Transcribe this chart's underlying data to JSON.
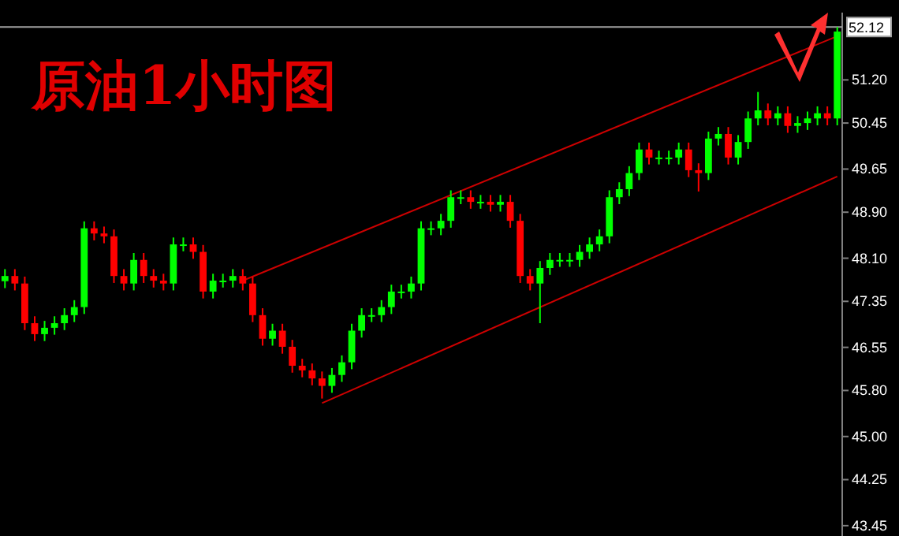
{
  "chart_data": {
    "type": "candlestick",
    "title": "原油1小时图",
    "categories": [
      null,
      null,
      null,
      null,
      null,
      null,
      null,
      null,
      null,
      null,
      null,
      null,
      null,
      null,
      null,
      null,
      null,
      null,
      null,
      null,
      null,
      null,
      null,
      null,
      null,
      null,
      null,
      null,
      null,
      null,
      null,
      null,
      null,
      null,
      null,
      null,
      null,
      null,
      null,
      null,
      null,
      null,
      null,
      null,
      null,
      null,
      null,
      null,
      null,
      null,
      null,
      null,
      null,
      null,
      null,
      null,
      null,
      null,
      null,
      null,
      null,
      null,
      null,
      null,
      null,
      null,
      null,
      null,
      null,
      null,
      null,
      null,
      null,
      null,
      null,
      null,
      null,
      null,
      null,
      null,
      null,
      null,
      null,
      null,
      null
    ],
    "ohlc": [
      [
        47.7,
        47.91,
        47.58,
        47.79
      ],
      [
        47.79,
        47.91,
        47.54,
        47.66
      ],
      [
        47.66,
        47.78,
        46.85,
        46.97
      ],
      [
        46.97,
        47.09,
        46.66,
        46.78
      ],
      [
        46.78,
        47.01,
        46.66,
        46.89
      ],
      [
        46.89,
        47.09,
        46.77,
        46.97
      ],
      [
        46.97,
        47.23,
        46.85,
        47.11
      ],
      [
        47.11,
        47.37,
        46.99,
        47.25
      ],
      [
        47.25,
        48.74,
        47.13,
        48.62
      ],
      [
        48.62,
        48.74,
        48.41,
        48.53
      ],
      [
        48.53,
        48.65,
        48.36,
        48.48
      ],
      [
        48.48,
        48.6,
        47.67,
        47.79
      ],
      [
        47.79,
        47.91,
        47.54,
        47.66
      ],
      [
        47.66,
        48.19,
        47.54,
        48.07
      ],
      [
        48.07,
        48.19,
        47.67,
        47.79
      ],
      [
        47.79,
        47.91,
        47.59,
        47.71
      ],
      [
        47.71,
        47.83,
        47.54,
        47.66
      ],
      [
        47.66,
        48.46,
        47.54,
        48.34
      ],
      [
        48.34,
        48.46,
        48.22,
        48.34
      ],
      [
        48.34,
        48.46,
        48.09,
        48.21
      ],
      [
        48.21,
        48.33,
        47.4,
        47.52
      ],
      [
        47.52,
        47.83,
        47.4,
        47.71
      ],
      [
        47.71,
        47.83,
        47.59,
        47.71
      ],
      [
        47.71,
        47.91,
        47.59,
        47.79
      ],
      [
        47.79,
        47.91,
        47.54,
        47.66
      ],
      [
        47.66,
        47.78,
        46.99,
        47.11
      ],
      [
        47.11,
        47.23,
        46.58,
        46.7
      ],
      [
        46.7,
        46.96,
        46.58,
        46.84
      ],
      [
        46.84,
        46.96,
        46.44,
        46.56
      ],
      [
        46.56,
        46.68,
        46.11,
        46.23
      ],
      [
        46.23,
        46.35,
        46.03,
        46.15
      ],
      [
        46.15,
        46.27,
        45.89,
        46.01
      ],
      [
        46.01,
        46.13,
        45.66,
        45.88
      ],
      [
        45.88,
        46.19,
        45.76,
        46.07
      ],
      [
        46.07,
        46.41,
        45.95,
        46.29
      ],
      [
        46.29,
        46.96,
        46.17,
        46.84
      ],
      [
        46.84,
        47.23,
        46.72,
        47.11
      ],
      [
        47.11,
        47.23,
        46.99,
        47.11
      ],
      [
        47.11,
        47.37,
        46.99,
        47.25
      ],
      [
        47.25,
        47.64,
        47.13,
        47.52
      ],
      [
        47.52,
        47.64,
        47.4,
        47.52
      ],
      [
        47.52,
        47.78,
        47.4,
        47.66
      ],
      [
        47.66,
        48.74,
        47.54,
        48.62
      ],
      [
        48.62,
        48.74,
        48.5,
        48.62
      ],
      [
        48.62,
        48.87,
        48.5,
        48.75
      ],
      [
        48.75,
        49.28,
        48.63,
        49.16
      ],
      [
        49.16,
        49.28,
        49.04,
        49.16
      ],
      [
        49.16,
        49.28,
        48.96,
        49.08
      ],
      [
        49.08,
        49.2,
        48.96,
        49.08
      ],
      [
        49.08,
        49.2,
        48.91,
        49.03
      ],
      [
        49.03,
        49.2,
        48.91,
        49.08
      ],
      [
        49.08,
        49.2,
        48.63,
        48.75
      ],
      [
        48.75,
        48.87,
        47.67,
        47.79
      ],
      [
        47.79,
        47.91,
        47.54,
        47.66
      ],
      [
        47.66,
        48.05,
        46.97,
        47.93
      ],
      [
        47.93,
        48.19,
        47.81,
        48.07
      ],
      [
        48.07,
        48.19,
        47.95,
        48.07
      ],
      [
        48.07,
        48.19,
        47.95,
        48.07
      ],
      [
        48.07,
        48.33,
        47.95,
        48.21
      ],
      [
        48.21,
        48.46,
        48.09,
        48.34
      ],
      [
        48.34,
        48.6,
        48.22,
        48.48
      ],
      [
        48.48,
        49.28,
        48.36,
        49.16
      ],
      [
        49.16,
        49.42,
        49.04,
        49.3
      ],
      [
        49.3,
        49.7,
        49.18,
        49.58
      ],
      [
        49.58,
        50.11,
        49.46,
        49.99
      ],
      [
        49.99,
        50.11,
        49.73,
        49.85
      ],
      [
        49.85,
        49.97,
        49.73,
        49.85
      ],
      [
        49.85,
        49.97,
        49.73,
        49.85
      ],
      [
        49.85,
        50.11,
        49.73,
        49.99
      ],
      [
        49.99,
        50.11,
        49.51,
        49.63
      ],
      [
        49.63,
        49.75,
        49.26,
        49.58
      ],
      [
        49.58,
        50.3,
        49.46,
        50.18
      ],
      [
        50.18,
        50.38,
        50.06,
        50.26
      ],
      [
        50.26,
        50.38,
        49.73,
        49.85
      ],
      [
        49.85,
        50.24,
        49.73,
        50.12
      ],
      [
        50.12,
        50.65,
        50.0,
        50.53
      ],
      [
        50.53,
        50.99,
        50.41,
        50.67
      ],
      [
        50.67,
        50.79,
        50.41,
        50.53
      ],
      [
        50.53,
        50.74,
        50.41,
        50.62
      ],
      [
        50.62,
        50.74,
        50.28,
        50.4
      ],
      [
        50.4,
        50.57,
        50.28,
        50.45
      ],
      [
        50.45,
        50.65,
        50.33,
        50.53
      ],
      [
        50.53,
        50.74,
        50.41,
        50.62
      ],
      [
        50.62,
        50.74,
        50.41,
        50.53
      ],
      [
        50.53,
        52.12,
        50.41,
        52.04
      ]
    ],
    "series": [
      {
        "type": "line",
        "color": "#cc0000",
        "values": [
          null,
          null,
          null,
          null,
          null,
          null,
          null,
          null,
          null,
          null,
          null,
          null,
          null,
          null,
          null,
          null,
          null,
          null,
          null,
          null,
          null,
          null,
          null,
          null,
          47.71,
          null,
          null,
          null,
          null,
          null,
          null,
          null,
          null,
          null,
          null,
          null,
          null,
          null,
          null,
          null,
          null,
          null,
          null,
          null,
          null,
          null,
          null,
          null,
          null,
          null,
          null,
          null,
          null,
          null,
          null,
          null,
          null,
          null,
          null,
          null,
          null,
          null,
          null,
          null,
          null,
          null,
          null,
          null,
          null,
          null,
          null,
          null,
          null,
          null,
          null,
          null,
          null,
          null,
          null,
          null,
          null,
          null,
          null,
          null,
          51.96
        ]
      },
      {
        "type": "line",
        "color": "#cc0000",
        "values": [
          null,
          null,
          null,
          null,
          null,
          null,
          null,
          null,
          null,
          null,
          null,
          null,
          null,
          null,
          null,
          null,
          null,
          null,
          null,
          null,
          null,
          null,
          null,
          null,
          null,
          null,
          null,
          null,
          null,
          null,
          null,
          null,
          45.58,
          null,
          null,
          null,
          null,
          null,
          null,
          null,
          null,
          null,
          null,
          null,
          null,
          null,
          null,
          null,
          null,
          null,
          null,
          null,
          null,
          null,
          null,
          null,
          null,
          null,
          null,
          null,
          null,
          null,
          null,
          null,
          null,
          null,
          null,
          null,
          null,
          null,
          null,
          null,
          null,
          null,
          null,
          null,
          null,
          null,
          null,
          null,
          null,
          null,
          null,
          null,
          49.52
        ]
      }
    ],
    "ylim": [
      43.27,
      52.37
    ],
    "yticks": [
      {
        "value": 51.2,
        "label": "51.20"
      },
      {
        "value": 50.45,
        "label": "50.45"
      },
      {
        "value": 49.65,
        "label": "49.65"
      },
      {
        "value": 48.9,
        "label": "48.90"
      },
      {
        "value": 48.1,
        "label": "48.10"
      },
      {
        "value": 47.35,
        "label": "47.35"
      },
      {
        "value": 46.55,
        "label": "46.55"
      },
      {
        "value": 45.8,
        "label": "45.80"
      },
      {
        "value": 45.0,
        "label": "45.00"
      },
      {
        "value": 44.25,
        "label": "44.25"
      },
      {
        "value": 43.45,
        "label": "43.45"
      }
    ],
    "ref_lines": [
      {
        "axis": "y",
        "value": 52.12,
        "label": "52.12",
        "color": "#a0a0a0"
      }
    ],
    "grid": false
  }
}
